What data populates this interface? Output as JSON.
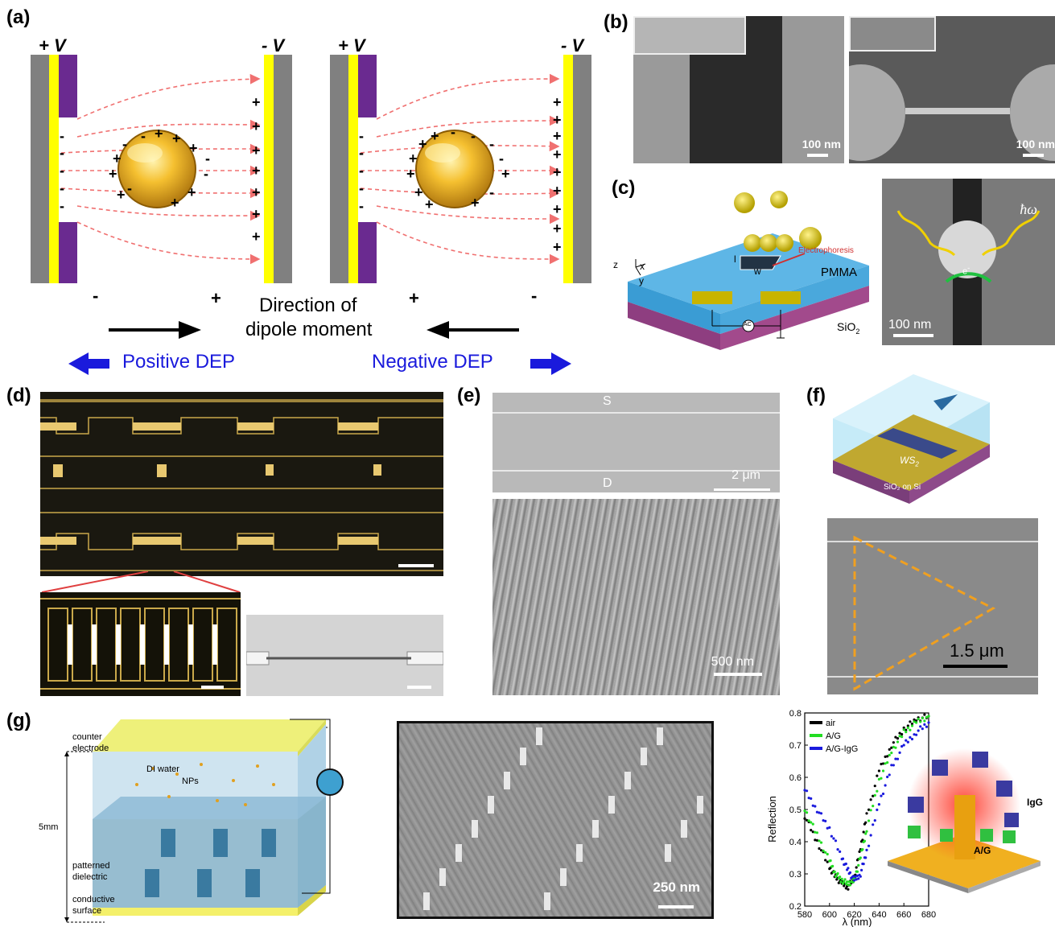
{
  "panels": {
    "a": {
      "label": "(a)",
      "plus_v_left": "+ V",
      "minus_v_left": "- V",
      "plus_v_right": "+ V",
      "minus_v_right": "- V",
      "sign_minus_1": "-",
      "sign_plus_1": "+",
      "sign_plus_2": "+",
      "sign_minus_2": "-",
      "direction_line1": "Direction of",
      "direction_line2": "dipole moment",
      "positive_dep": "Positive DEP",
      "negative_dep": "Negative DEP",
      "accent_blue": "#1a1adc",
      "arrow_red": "#e03030"
    },
    "b": {
      "label": "(b)",
      "scale_left": "100 nm",
      "scale_right": "100 nm"
    },
    "c": {
      "label": "(c)",
      "axis_z": "z",
      "axis_x": "x",
      "axis_y": "y",
      "gap_l": "l",
      "gap_w": "w",
      "electrophoresis": "Electrophoresis",
      "pmma": "PMMA",
      "sio2": "SiO",
      "sio2_sub": "2",
      "ac": "AC",
      "hbar_omega": "ħω",
      "electron": "e",
      "electron_sup": "-",
      "scale": "100 nm"
    },
    "d": {
      "label": "(d)"
    },
    "e": {
      "label": "(e)",
      "source": "S",
      "drain": "D",
      "scale_top": "2 μm",
      "scale_bottom": "500 nm"
    },
    "f": {
      "label": "(f)",
      "ws2": "WS",
      "ws2_sub": "2",
      "substrate": "SiO₂ on Si",
      "scale": "1.5 μm"
    },
    "g": {
      "label": "(g)",
      "counter_electrode_1": "counter",
      "counter_electrode_2": "electrode",
      "di_water": "DI water",
      "nps": "NPs",
      "height": "5mm",
      "patterned_1": "patterned",
      "patterned_2": "dielectric",
      "conductive_1": "conductive",
      "conductive_2": "surface",
      "sem_scale": "250 nm",
      "igg": "IgG",
      "ag": "A/G"
    }
  },
  "chart_data": {
    "type": "scatter",
    "xlabel": "λ (nm)",
    "ylabel": "Reflection",
    "xlim": [
      580,
      680
    ],
    "ylim": [
      0.2,
      0.8
    ],
    "x_ticks": [
      580,
      600,
      620,
      640,
      660,
      680
    ],
    "y_ticks": [
      0.2,
      0.3,
      0.4,
      0.5,
      0.6,
      0.7,
      0.8
    ],
    "legend_position": "top-left",
    "series": [
      {
        "name": "air",
        "color": "#000000",
        "x": [
          580,
          590,
          600,
          605,
          610,
          615,
          620,
          625,
          630,
          640,
          650,
          660,
          670,
          680
        ],
        "y": [
          0.48,
          0.4,
          0.32,
          0.29,
          0.27,
          0.26,
          0.29,
          0.38,
          0.48,
          0.62,
          0.7,
          0.75,
          0.78,
          0.79
        ]
      },
      {
        "name": "A/G",
        "color": "#22dd22",
        "x": [
          580,
          590,
          600,
          605,
          610,
          615,
          620,
          625,
          630,
          640,
          650,
          660,
          670,
          680
        ],
        "y": [
          0.5,
          0.42,
          0.34,
          0.3,
          0.28,
          0.27,
          0.28,
          0.35,
          0.44,
          0.59,
          0.68,
          0.74,
          0.77,
          0.79
        ]
      },
      {
        "name": "A/G-IgG",
        "color": "#1a1add",
        "x": [
          580,
          590,
          600,
          610,
          615,
          620,
          625,
          630,
          640,
          650,
          660,
          670,
          680
        ],
        "y": [
          0.56,
          0.5,
          0.44,
          0.35,
          0.31,
          0.28,
          0.3,
          0.37,
          0.52,
          0.63,
          0.7,
          0.74,
          0.77
        ]
      }
    ]
  }
}
